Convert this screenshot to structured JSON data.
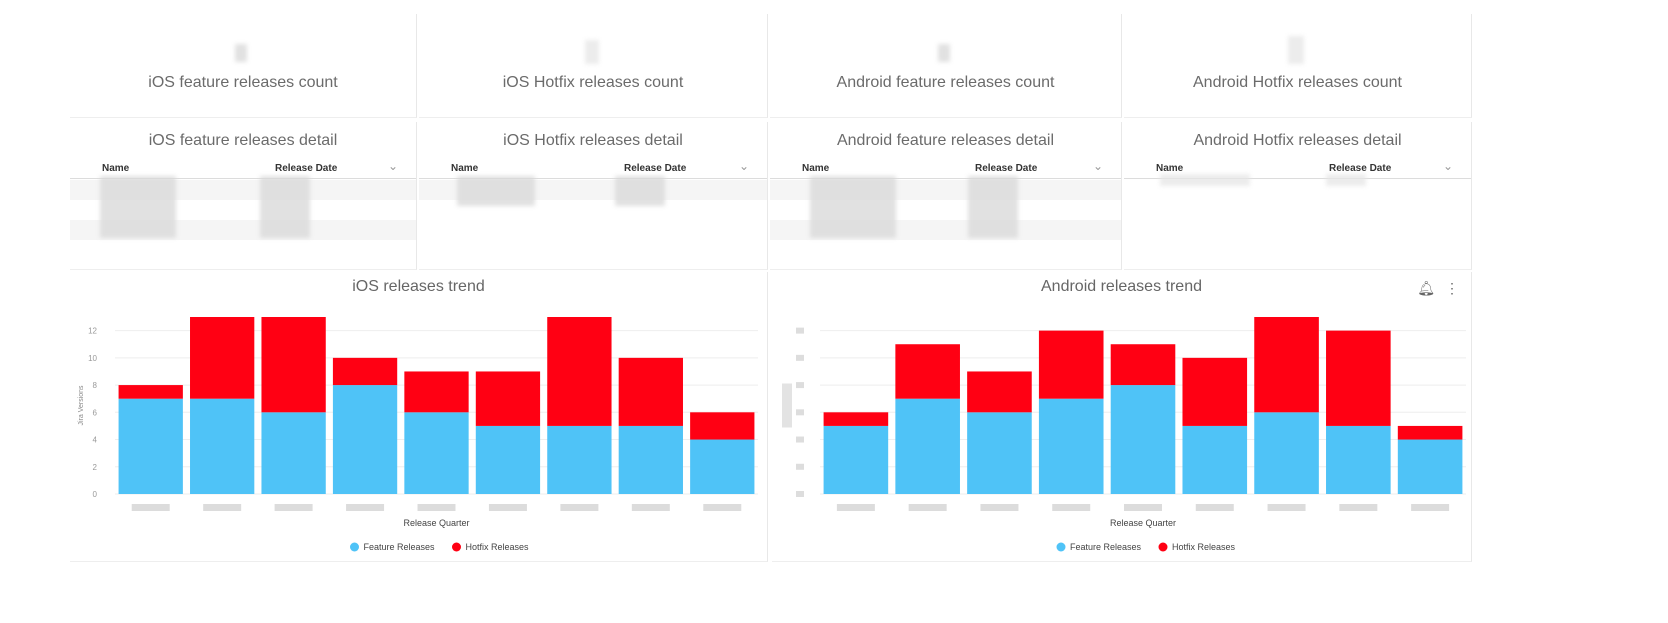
{
  "count_tiles": [
    {
      "title": "iOS feature releases count"
    },
    {
      "title": "iOS Hotfix releases count"
    },
    {
      "title": "Android feature releases count"
    },
    {
      "title": "Android Hotfix releases count"
    }
  ],
  "detail_tiles": [
    {
      "title": "iOS feature releases detail",
      "col_name": "Name",
      "col_date": "Release Date"
    },
    {
      "title": "iOS Hotfix releases detail",
      "col_name": "Name",
      "col_date": "Release Date"
    },
    {
      "title": "Android feature releases detail",
      "col_name": "Name",
      "col_date": "Release Date"
    },
    {
      "title": "Android Hotfix releases detail",
      "col_name": "Name",
      "col_date": "Release Date"
    }
  ],
  "icons": {
    "bell": "bell-icon",
    "more": "more-vertical-icon",
    "chevron": "chevron-down-icon"
  },
  "colors": {
    "feature": "#4FC3F7",
    "hotfix": "#FF0013"
  },
  "chart_data": [
    {
      "type": "bar",
      "stacked": true,
      "title": "iOS releases trend",
      "xlabel": "Release Quarter",
      "ylabel": "Jira Versions",
      "ylim": [
        0,
        13
      ],
      "yticks": [
        0,
        2,
        4,
        6,
        8,
        10,
        12
      ],
      "categories_count": 9,
      "series": [
        {
          "name": "Feature Releases",
          "values": [
            7,
            7,
            6,
            8,
            6,
            5,
            5,
            5,
            4
          ]
        },
        {
          "name": "Hotfix Releases",
          "values": [
            1,
            6,
            7,
            2,
            3,
            4,
            8,
            5,
            2
          ]
        }
      ],
      "legend": "bottom",
      "grid": true
    },
    {
      "type": "bar",
      "stacked": true,
      "title": "Android releases trend",
      "xlabel": "Release Quarter",
      "ylim": [
        0,
        13
      ],
      "categories_count": 9,
      "series": [
        {
          "name": "Feature Releases",
          "values": [
            5,
            7,
            6,
            7,
            8,
            5,
            6,
            5,
            4
          ]
        },
        {
          "name": "Hotfix Releases",
          "values": [
            1,
            4,
            3,
            5,
            3,
            5,
            7,
            7,
            1
          ]
        }
      ],
      "legend": "bottom",
      "grid": true
    }
  ]
}
